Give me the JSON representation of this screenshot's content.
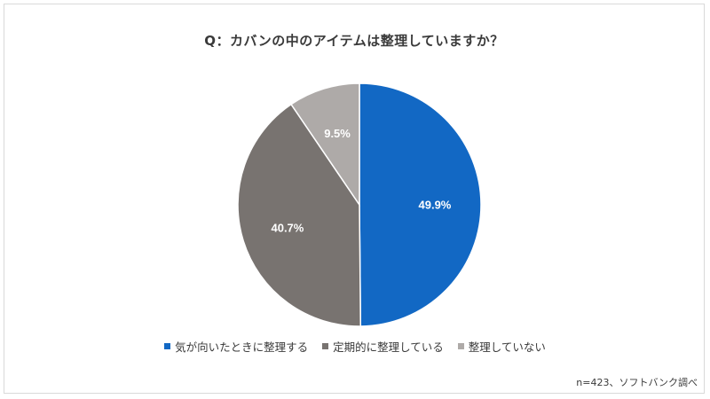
{
  "chart_data": {
    "type": "pie",
    "title": "Q：カバンの中のアイテムは整理していますか？",
    "categories": [
      "気が向いたときに整理する",
      "定期的に整理している",
      "整理していない"
    ],
    "values": [
      49.9,
      40.7,
      9.5
    ],
    "labels": [
      "49.9%",
      "40.7%",
      "9.5%"
    ],
    "colors": [
      "#1268c4",
      "#787370",
      "#aeaaa8"
    ],
    "legend_position": "bottom",
    "start_angle": "12 o'clock",
    "direction": "clockwise"
  },
  "note": "n=423、ソフトバンク調べ"
}
